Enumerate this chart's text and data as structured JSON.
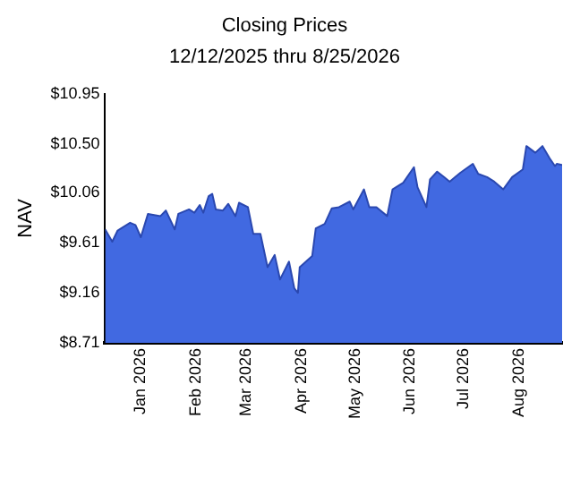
{
  "chart_data": {
    "type": "area",
    "title": "Closing Prices",
    "subtitle": "12/12/2025 thru 8/25/2026",
    "ylabel": "NAV",
    "x": [
      "2025-12-12",
      "2025-12-16",
      "2025-12-19",
      "2025-12-26",
      "2025-12-29",
      "2026-01-01",
      "2026-01-05",
      "2026-01-12",
      "2026-01-15",
      "2026-01-20",
      "2026-01-22",
      "2026-01-28",
      "2026-01-31",
      "2026-02-03",
      "2026-02-05",
      "2026-02-08",
      "2026-02-10",
      "2026-02-12",
      "2026-02-16",
      "2026-02-19",
      "2026-02-23",
      "2026-02-25",
      "2026-03-02",
      "2026-03-05",
      "2026-03-09",
      "2026-03-13",
      "2026-03-17",
      "2026-03-20",
      "2026-03-25",
      "2026-03-28",
      "2026-03-30",
      "2026-03-31",
      "2026-04-07",
      "2026-04-09",
      "2026-04-14",
      "2026-04-18",
      "2026-04-22",
      "2026-04-28",
      "2026-04-30",
      "2026-05-06",
      "2026-05-09",
      "2026-05-13",
      "2026-05-19",
      "2026-05-22",
      "2026-05-28",
      "2026-06-03",
      "2026-06-05",
      "2026-06-10",
      "2026-06-12",
      "2026-06-16",
      "2026-06-20",
      "2026-06-23",
      "2026-06-29",
      "2026-07-06",
      "2026-07-09",
      "2026-07-14",
      "2026-07-18",
      "2026-07-23",
      "2026-07-28",
      "2026-08-03",
      "2026-08-05",
      "2026-08-10",
      "2026-08-14",
      "2026-08-18",
      "2026-08-21",
      "2026-08-22",
      "2026-08-25"
    ],
    "series": [
      {
        "color": "#4169e1",
        "values": [
          9.73,
          9.62,
          9.72,
          9.79,
          9.77,
          9.66,
          9.87,
          9.85,
          9.9,
          9.73,
          9.87,
          9.91,
          9.88,
          9.95,
          9.88,
          10.03,
          10.05,
          9.91,
          9.9,
          9.96,
          9.85,
          9.97,
          9.93,
          9.69,
          9.69,
          9.39,
          9.5,
          9.28,
          9.44,
          9.2,
          9.16,
          9.39,
          9.49,
          9.74,
          9.78,
          9.92,
          9.93,
          9.98,
          9.91,
          10.09,
          9.93,
          9.93,
          9.85,
          10.09,
          10.15,
          10.29,
          10.11,
          9.93,
          10.18,
          10.25,
          10.2,
          10.16,
          10.24,
          10.32,
          10.23,
          10.2,
          10.16,
          10.09,
          10.2,
          10.27,
          10.48,
          10.42,
          10.48,
          10.37,
          10.3,
          10.32,
          10.31
        ]
      }
    ],
    "xlim": [
      "2025-12-12",
      "2026-08-25"
    ],
    "xticks": [
      {
        "value": "2026-01-01",
        "label": "Jan 2026"
      },
      {
        "value": "2026-02-01",
        "label": "Feb 2026"
      },
      {
        "value": "2026-03-01",
        "label": "Mar 2026"
      },
      {
        "value": "2026-04-01",
        "label": "Apr 2026"
      },
      {
        "value": "2026-05-01",
        "label": "May 2026"
      },
      {
        "value": "2026-06-01",
        "label": "Jun 2026"
      },
      {
        "value": "2026-07-01",
        "label": "Jul 2026"
      },
      {
        "value": "2026-08-01",
        "label": "Aug 2026"
      }
    ],
    "ylim": [
      8.71,
      10.95
    ],
    "yticks": [
      {
        "value": 8.71,
        "label": "$8.71"
      },
      {
        "value": 9.16,
        "label": "$9.16"
      },
      {
        "value": 9.61,
        "label": "$9.61"
      },
      {
        "value": 10.06,
        "label": "$10.06"
      },
      {
        "value": 10.5,
        "label": "$10.50"
      },
      {
        "value": 10.95,
        "label": "$10.95"
      }
    ],
    "grid": false,
    "legend": false,
    "marker": "none",
    "line_style": "solid"
  }
}
